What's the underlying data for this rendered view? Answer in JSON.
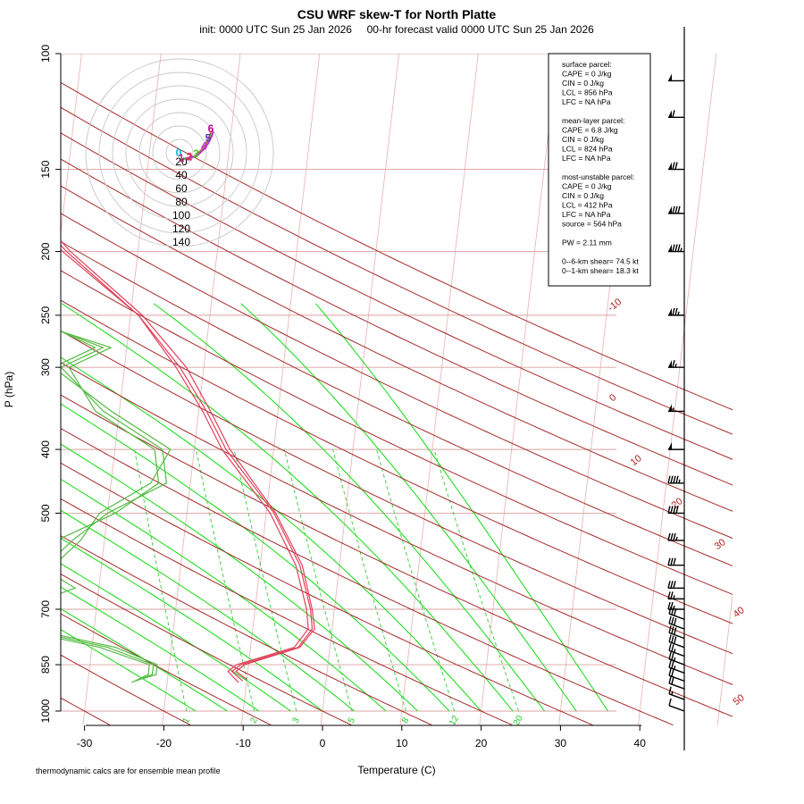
{
  "chart_data": {
    "type": "skew-t",
    "title": "CSU WRF skew-T for North Platte",
    "subtitle": "init: 0000 UTC Sun 25 Jan 2026     00-hr forecast valid 0000 UTC Sun 25 Jan 2026",
    "xlabel": "Temperature (C)",
    "ylabel": "P (hPa)",
    "footnote": "thermodynamic calcs are for ensemble mean profile",
    "xlim": [
      -33,
      45
    ],
    "plim": [
      1000,
      100
    ],
    "x_ticks": [
      "-30",
      "-20",
      "-10",
      "0",
      "10",
      "20",
      "30",
      "40"
    ],
    "x_tick_values": [
      -30,
      -20,
      -10,
      0,
      10,
      20,
      30,
      40
    ],
    "p_ticks": [
      "100",
      "150",
      "200",
      "250",
      "300",
      "400",
      "500",
      "700",
      "850",
      "1000"
    ],
    "p_tick_values": [
      100,
      150,
      200,
      250,
      300,
      400,
      500,
      700,
      850,
      1000
    ],
    "isobar_values": [
      100,
      150,
      200,
      250,
      300,
      400,
      500,
      700,
      850,
      1000
    ],
    "dry_adiabat_labels": [
      "-10",
      "0",
      "10",
      "20",
      "30",
      "40",
      "50"
    ],
    "dry_adiabat_label_values": [
      -10,
      0,
      10,
      20,
      30,
      40,
      50
    ],
    "mixing_ratio_labels": [
      "1",
      "2",
      "3",
      "5",
      "8",
      "12",
      "20"
    ],
    "mixing_ratio_values": [
      1,
      2,
      3,
      5,
      8,
      12,
      20
    ],
    "temperature_profiles": [
      {
        "p": [
          900,
          870,
          850,
          800,
          750,
          700,
          600,
          500,
          400,
          350,
          300,
          250,
          200,
          170,
          150,
          130,
          115
        ],
        "t": [
          -10.5,
          -12,
          -11,
          -4,
          -2.5,
          -3,
          -5,
          -9,
          -16,
          -19,
          -23,
          -29,
          -39,
          -45,
          -50,
          -56,
          -61
        ]
      },
      {
        "p": [
          905,
          870,
          850,
          800,
          750,
          700,
          600,
          500,
          400,
          350,
          300,
          250,
          200,
          170,
          150,
          130,
          115
        ],
        "t": [
          -11,
          -12.5,
          -11.5,
          -4.5,
          -3,
          -3.5,
          -5.5,
          -9.5,
          -16.5,
          -19.5,
          -23.5,
          -29,
          -39.5,
          -45.5,
          -50.5,
          -56.5,
          -61.5
        ]
      },
      {
        "p": [
          895,
          870,
          850,
          800,
          750,
          700,
          600,
          500,
          400,
          350,
          300,
          250,
          200,
          170,
          150,
          130,
          115
        ],
        "t": [
          -10,
          -11.5,
          -10.5,
          -3.8,
          -2.2,
          -2.8,
          -4.7,
          -8.8,
          -15.5,
          -18.5,
          -22.2,
          -28.5,
          -38.5,
          -44.5,
          -49.5,
          -55.5,
          -60.5
        ]
      }
    ],
    "dewpoint_profiles": [
      {
        "p": [
          900,
          880,
          850,
          800,
          750,
          700,
          650,
          600,
          550,
          500,
          450,
          400,
          350,
          300,
          280,
          250,
          200,
          180
        ],
        "td": [
          -24,
          -22,
          -22,
          -28,
          -39,
          -41,
          -35,
          -37,
          -34,
          -30,
          -23,
          -24,
          -32,
          -38,
          -33,
          -44,
          -53,
          -57
        ]
      },
      {
        "p": [
          905,
          880,
          850,
          800,
          750,
          700,
          650,
          600,
          550,
          500,
          450,
          400,
          350,
          300,
          280,
          250,
          200,
          180
        ],
        "td": [
          -24.5,
          -22.5,
          -22.5,
          -29,
          -40,
          -40,
          -33,
          -38,
          -36,
          -29,
          -24,
          -25,
          -33,
          -37,
          -32,
          -45,
          -54,
          -58
        ]
      },
      {
        "p": [
          895,
          880,
          850,
          800,
          750,
          700,
          650,
          600,
          550,
          500,
          450,
          400,
          350,
          300,
          280,
          250,
          200,
          180
        ],
        "td": [
          -23.5,
          -21.5,
          -21.5,
          -27,
          -38,
          -42,
          -36,
          -36,
          -33,
          -31,
          -25,
          -23,
          -31,
          -39,
          -34,
          -43,
          -52,
          -56
        ]
      }
    ],
    "wind_barb_pressures": [
      1000,
      960,
      925,
      900,
      875,
      850,
      825,
      800,
      775,
      750,
      725,
      700,
      675,
      650,
      600,
      550,
      500,
      450,
      400,
      350,
      300,
      250,
      200,
      175,
      150,
      125,
      110
    ],
    "wind_barb_speeds_kt": [
      10,
      15,
      20,
      20,
      25,
      25,
      25,
      30,
      30,
      30,
      30,
      25,
      25,
      30,
      30,
      35,
      40,
      45,
      50,
      55,
      65,
      75,
      85,
      80,
      70,
      60,
      50
    ],
    "hodograph": {
      "ring_labels": [
        "20",
        "40",
        "60",
        "80",
        "100",
        "120",
        "140"
      ],
      "ring_values": [
        20,
        40,
        60,
        80,
        100,
        120,
        140
      ],
      "height_labels": [
        "0",
        "1",
        "2",
        "3",
        "4",
        "5",
        "6"
      ]
    },
    "parcel_info": [
      "surface parcel:",
      "CAPE = 0 J/kg",
      "CIN = 0 J/kg",
      "LCL = 856 hPa",
      "LFC = NA hPa",
      "",
      "mean-layer parcel:",
      "CAPE = 6.8 J/kg",
      "CIN = 0 J/kg",
      "LCL = 824 hPa",
      "LFC = NA hPa",
      "",
      "most-unstable parcel:",
      "CAPE = 0 J/kg",
      "CIN = 0 J/kg",
      "LCL = 412 hPa",
      "LFC = NA hPa",
      "source = 564 hPa",
      "",
      "PW =  2.11 mm",
      "",
      "0--6-km shear= 74.5 kt",
      "0--1-km shear= 18.3 kt"
    ],
    "colors": {
      "temperature": "#e0405a",
      "dewpoint": "#55bb44",
      "dry_adiabat": "#a52a2a",
      "moist_adiabat": "#22dd22",
      "mixing_ratio": "#33cc33",
      "isotherm": "#e8b0b0",
      "isobar": "#dba0a0"
    }
  }
}
